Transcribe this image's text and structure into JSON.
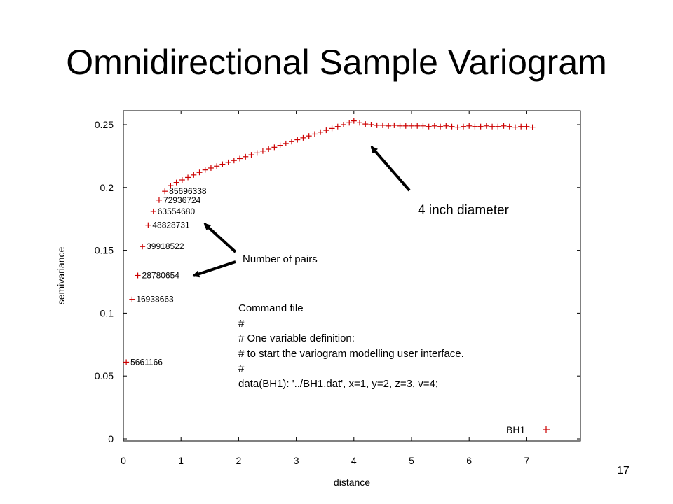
{
  "slide": {
    "title": "Omnidirectional Sample Variogram",
    "page_number": "17"
  },
  "annotations": {
    "diameter_label": "4 inch diameter",
    "pairs_label": "Number of pairs"
  },
  "command_file": {
    "lines": [
      "Command file",
      "#",
      "# One variable definition:",
      "# to start the variogram modelling user interface.",
      "#",
      "data(BH1): '../BH1.dat', x=1, y=2, z=3, v=4;"
    ]
  },
  "chart_data": {
    "type": "scatter",
    "xlabel": "distance",
    "ylabel": "semivariance",
    "xlim": [
      0,
      7.8
    ],
    "ylim": [
      0,
      0.27
    ],
    "xticks": [
      "0",
      "1",
      "2",
      "3",
      "4",
      "5",
      "6",
      "7"
    ],
    "yticks": [
      "0",
      "0.05",
      "0.1",
      "0.15",
      "0.2",
      "0.25"
    ],
    "legend": {
      "label": "BH1",
      "position": "bottom-right"
    },
    "marker": "+",
    "marker_color": "#cc0000",
    "series": [
      {
        "name": "BH1",
        "points": [
          {
            "x": 0.05,
            "y": 0.061,
            "label": "5661166"
          },
          {
            "x": 0.15,
            "y": 0.111,
            "label": "16938663"
          },
          {
            "x": 0.25,
            "y": 0.13,
            "label": "28780654"
          },
          {
            "x": 0.33,
            "y": 0.153,
            "label": "39918522"
          },
          {
            "x": 0.43,
            "y": 0.17,
            "label": "48828731"
          },
          {
            "x": 0.52,
            "y": 0.181,
            "label": "63554680"
          },
          {
            "x": 0.62,
            "y": 0.19,
            "label": "72936724"
          },
          {
            "x": 0.72,
            "y": 0.197,
            "label": "85696338"
          },
          {
            "x": 0.82,
            "y": 0.2015,
            "label": ""
          },
          {
            "x": 0.92,
            "y": 0.204,
            "label": ""
          },
          {
            "x": 1.02,
            "y": 0.206,
            "label": ""
          },
          {
            "x": 1.12,
            "y": 0.208,
            "label": ""
          },
          {
            "x": 1.22,
            "y": 0.21,
            "label": ""
          },
          {
            "x": 1.32,
            "y": 0.212,
            "label": ""
          },
          {
            "x": 1.42,
            "y": 0.214,
            "label": ""
          },
          {
            "x": 1.52,
            "y": 0.2155,
            "label": ""
          },
          {
            "x": 1.62,
            "y": 0.217,
            "label": ""
          },
          {
            "x": 1.72,
            "y": 0.2185,
            "label": ""
          },
          {
            "x": 1.82,
            "y": 0.22,
            "label": ""
          },
          {
            "x": 1.92,
            "y": 0.2215,
            "label": ""
          },
          {
            "x": 2.02,
            "y": 0.223,
            "label": ""
          },
          {
            "x": 2.12,
            "y": 0.2245,
            "label": ""
          },
          {
            "x": 2.22,
            "y": 0.226,
            "label": ""
          },
          {
            "x": 2.32,
            "y": 0.2275,
            "label": ""
          },
          {
            "x": 2.42,
            "y": 0.229,
            "label": ""
          },
          {
            "x": 2.52,
            "y": 0.2305,
            "label": ""
          },
          {
            "x": 2.62,
            "y": 0.232,
            "label": ""
          },
          {
            "x": 2.72,
            "y": 0.2335,
            "label": ""
          },
          {
            "x": 2.82,
            "y": 0.235,
            "label": ""
          },
          {
            "x": 2.92,
            "y": 0.2365,
            "label": ""
          },
          {
            "x": 3.02,
            "y": 0.238,
            "label": ""
          },
          {
            "x": 3.12,
            "y": 0.2395,
            "label": ""
          },
          {
            "x": 3.22,
            "y": 0.241,
            "label": ""
          },
          {
            "x": 3.32,
            "y": 0.2425,
            "label": ""
          },
          {
            "x": 3.42,
            "y": 0.244,
            "label": ""
          },
          {
            "x": 3.52,
            "y": 0.2455,
            "label": ""
          },
          {
            "x": 3.62,
            "y": 0.247,
            "label": ""
          },
          {
            "x": 3.72,
            "y": 0.2485,
            "label": ""
          },
          {
            "x": 3.82,
            "y": 0.25,
            "label": ""
          },
          {
            "x": 3.92,
            "y": 0.2515,
            "label": ""
          },
          {
            "x": 4.0,
            "y": 0.253,
            "label": ""
          },
          {
            "x": 4.1,
            "y": 0.2515,
            "label": ""
          },
          {
            "x": 4.2,
            "y": 0.2505,
            "label": ""
          },
          {
            "x": 4.3,
            "y": 0.25,
            "label": ""
          },
          {
            "x": 4.4,
            "y": 0.2495,
            "label": ""
          },
          {
            "x": 4.5,
            "y": 0.2495,
            "label": ""
          },
          {
            "x": 4.6,
            "y": 0.249,
            "label": ""
          },
          {
            "x": 4.7,
            "y": 0.2495,
            "label": ""
          },
          {
            "x": 4.8,
            "y": 0.249,
            "label": ""
          },
          {
            "x": 4.9,
            "y": 0.249,
            "label": ""
          },
          {
            "x": 5.0,
            "y": 0.249,
            "label": ""
          },
          {
            "x": 5.1,
            "y": 0.249,
            "label": ""
          },
          {
            "x": 5.2,
            "y": 0.249,
            "label": ""
          },
          {
            "x": 5.3,
            "y": 0.2485,
            "label": ""
          },
          {
            "x": 5.4,
            "y": 0.249,
            "label": ""
          },
          {
            "x": 5.5,
            "y": 0.2485,
            "label": ""
          },
          {
            "x": 5.6,
            "y": 0.249,
            "label": ""
          },
          {
            "x": 5.7,
            "y": 0.2485,
            "label": ""
          },
          {
            "x": 5.8,
            "y": 0.248,
            "label": ""
          },
          {
            "x": 5.9,
            "y": 0.2485,
            "label": ""
          },
          {
            "x": 6.0,
            "y": 0.249,
            "label": ""
          },
          {
            "x": 6.1,
            "y": 0.2485,
            "label": ""
          },
          {
            "x": 6.2,
            "y": 0.2485,
            "label": ""
          },
          {
            "x": 6.3,
            "y": 0.249,
            "label": ""
          },
          {
            "x": 6.4,
            "y": 0.2485,
            "label": ""
          },
          {
            "x": 6.5,
            "y": 0.2485,
            "label": ""
          },
          {
            "x": 6.6,
            "y": 0.249,
            "label": ""
          },
          {
            "x": 6.7,
            "y": 0.2485,
            "label": ""
          },
          {
            "x": 6.8,
            "y": 0.248,
            "label": ""
          },
          {
            "x": 6.9,
            "y": 0.2485,
            "label": ""
          },
          {
            "x": 7.0,
            "y": 0.2485,
            "label": ""
          },
          {
            "x": 7.1,
            "y": 0.248,
            "label": ""
          }
        ]
      }
    ]
  }
}
